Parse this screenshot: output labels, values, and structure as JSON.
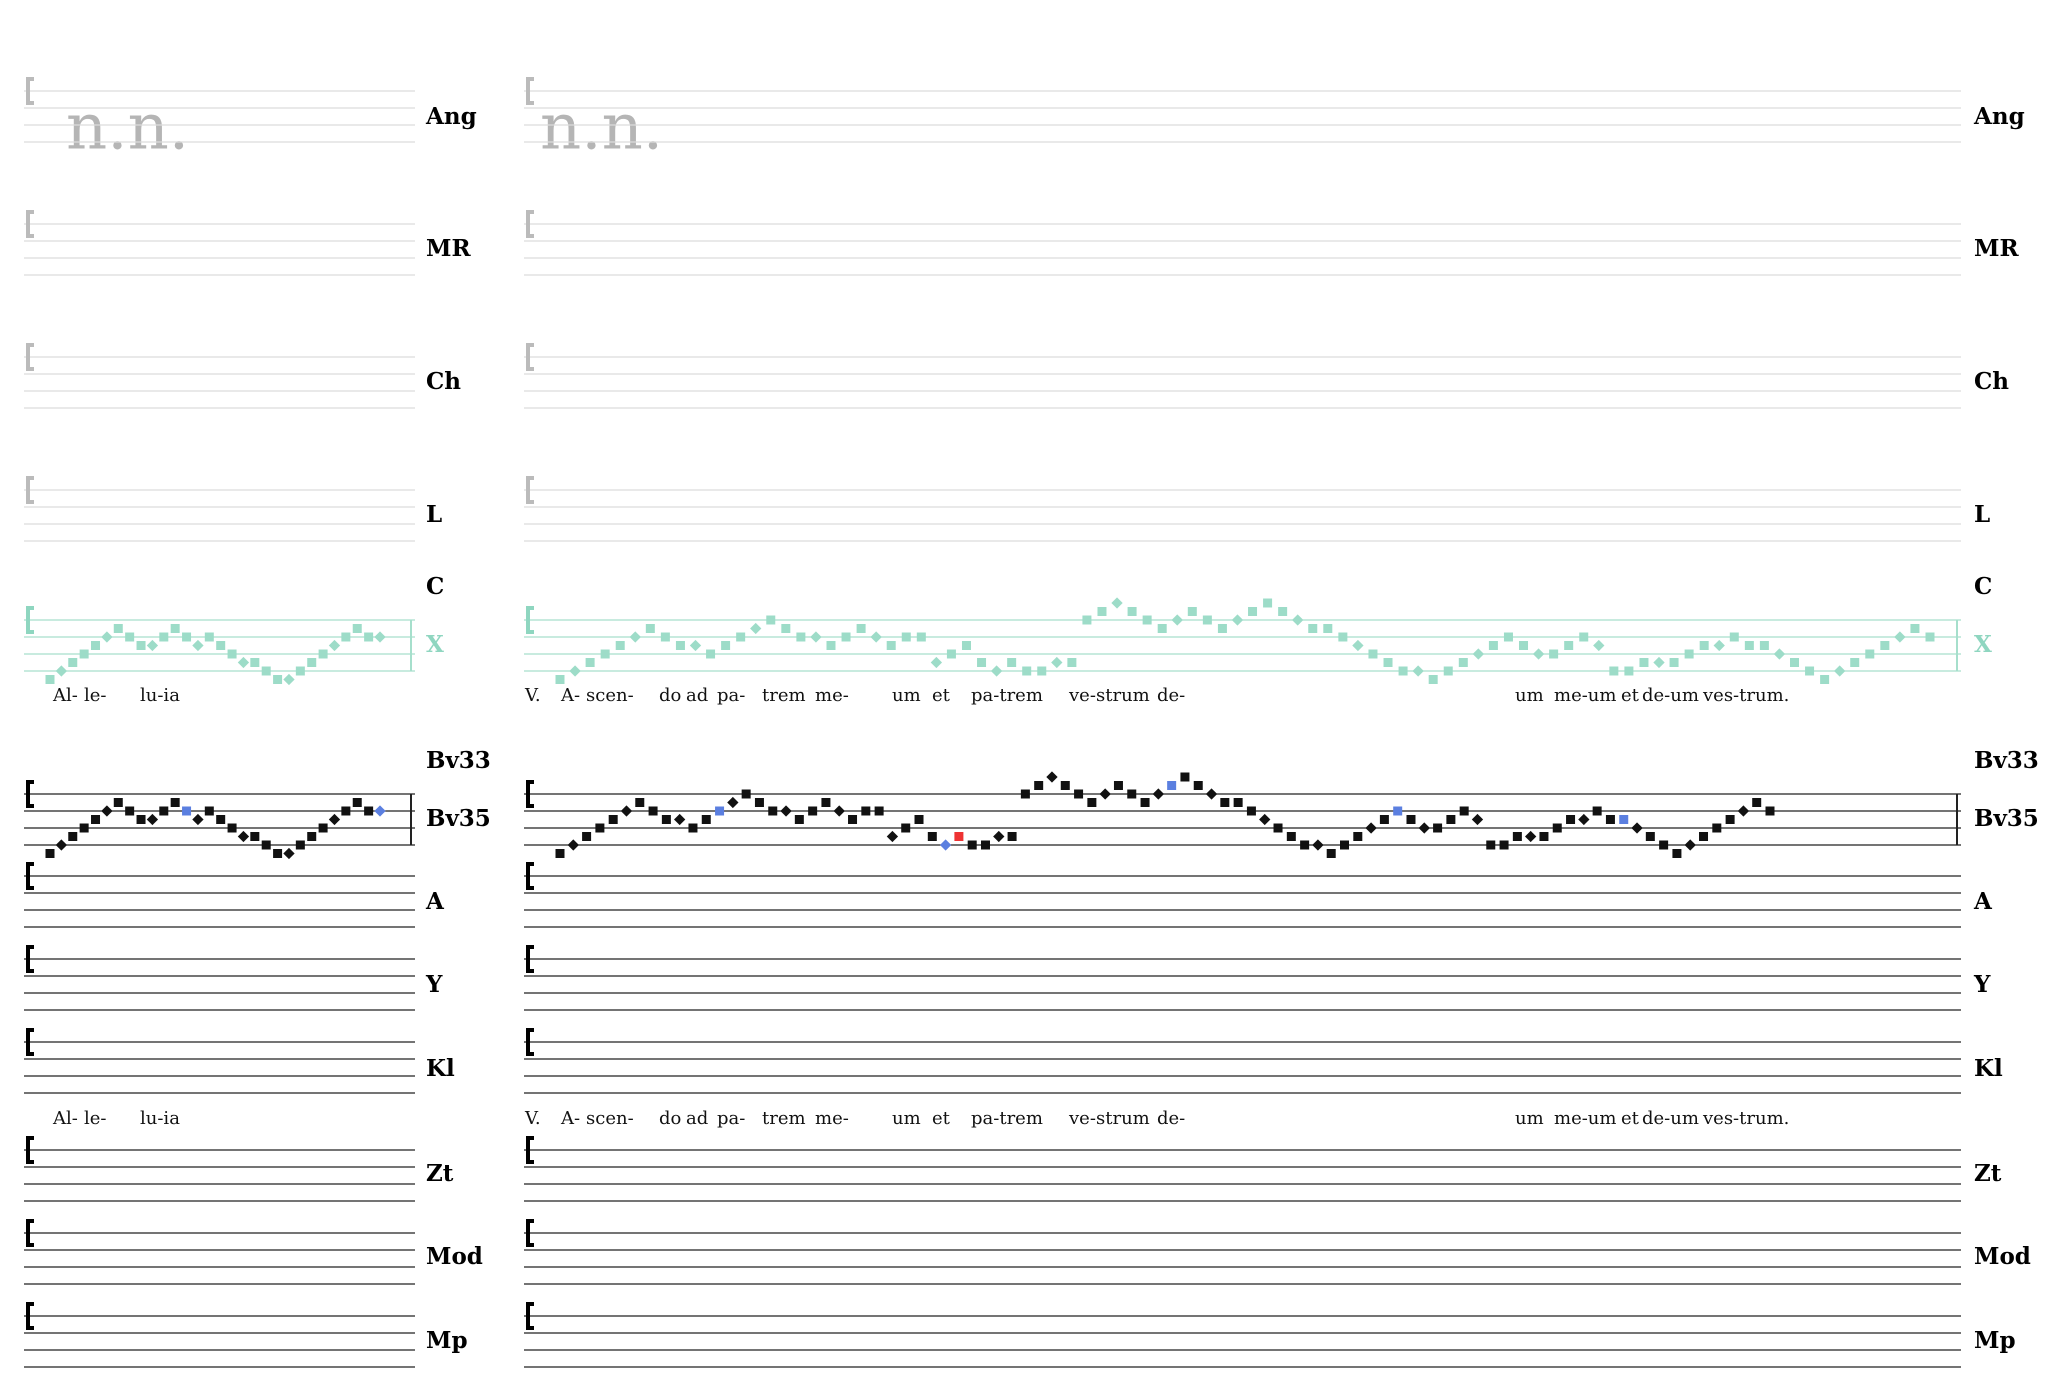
{
  "left": {
    "placeholder": "n.n.",
    "lyrics": [
      "Al-",
      "le-",
      "lu-ia"
    ]
  },
  "right": {
    "placeholder": "n.n.",
    "lyrics": [
      "V.",
      "A-",
      "scen-",
      "do",
      "ad",
      "pa-",
      "trem",
      "me-",
      "um",
      "et",
      "pa-trem",
      "ve-",
      "strum",
      "de-",
      "um",
      "me-um",
      "et",
      "de-um",
      "ves-trum."
    ]
  },
  "staff_labels": [
    "Ang",
    "MR",
    "Ch",
    "L",
    "C",
    "X",
    "Bv33",
    "Bv35",
    "A",
    "Y",
    "Kl",
    "Zt",
    "Mod",
    "Mp"
  ]
}
